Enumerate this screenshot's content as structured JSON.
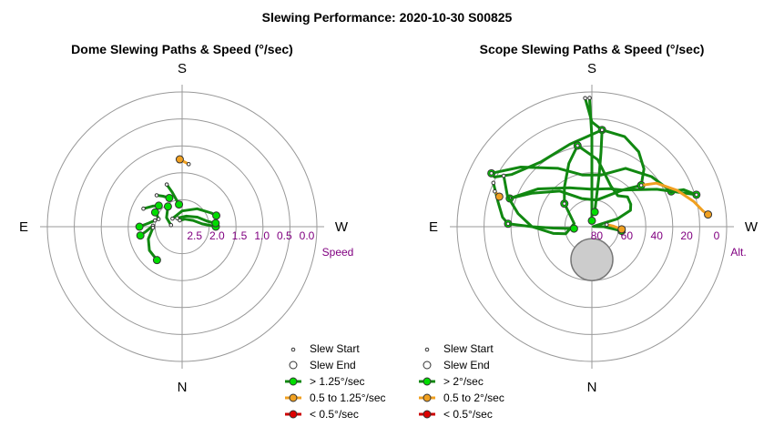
{
  "figure_title": "Slewing Performance: 2020-10-30 S00825",
  "colors": {
    "green_fill": "#00dd00",
    "green_line": "#118811",
    "orange_fill": "#f0a020",
    "orange_line": "#f0a020",
    "red_fill": "#dd0000",
    "red_line": "#cc0000",
    "grid": "#999999",
    "tick_text": "#800080",
    "moon_fill": "#cccccc",
    "moon_edge": "#777777"
  },
  "chart_data": [
    {
      "type": "scatter",
      "title": "Dome Slewing Paths & Speed (°/sec)",
      "projection": "polar",
      "compass": {
        "top": "S",
        "bottom": "N",
        "left": "E",
        "right": "W"
      },
      "radial_axis": {
        "quantity": "speed",
        "unit": "°/sec",
        "label": "Speed",
        "ticks": [
          "2.5",
          "2.0",
          "1.5",
          "1.0",
          "0.5",
          "0.0"
        ],
        "tick_values": [
          2.5,
          2.0,
          1.5,
          1.0,
          0.5,
          0.0
        ],
        "center_value": 3.0,
        "edge_value": 0.0
      },
      "legend": {
        "placement": "bottom-right",
        "entries": [
          {
            "label": "Slew Start",
            "marker": "small-circle"
          },
          {
            "label": "Slew End",
            "marker": "open-circle"
          },
          {
            "label": "> 1.25°/sec",
            "color": "green"
          },
          {
            "label": "0.5 to 1.25°/sec",
            "color": "orange"
          },
          {
            "label": "< 0.5°/sec",
            "color": "red"
          }
        ]
      },
      "slews": [
        {
          "speed": "fast",
          "points": [
            [
              160,
              2.0
            ],
            [
              164,
              2.2
            ],
            [
              172,
              2.5
            ]
          ]
        },
        {
          "speed": "fast",
          "points": [
            [
              108,
              2.45
            ],
            [
              113,
              2.4
            ],
            [
              118,
              2.32
            ]
          ]
        },
        {
          "speed": "fast",
          "points": [
            [
              115,
              2.05
            ],
            [
              125,
              2.2
            ],
            [
              132,
              2.3
            ]
          ]
        },
        {
          "speed": "fast",
          "points": [
            [
              141,
              2.1
            ],
            [
              148,
              2.2
            ],
            [
              156,
              2.3
            ]
          ]
        },
        {
          "speed": "fast",
          "points": [
            [
              103,
              2.38
            ],
            [
              96,
              2.25
            ],
            [
              90,
              2.05
            ]
          ]
        },
        {
          "speed": "fast",
          "points": [
            [
              92,
              2.35
            ],
            [
              83,
              2.2
            ],
            [
              78,
              2.05
            ]
          ]
        },
        {
          "speed": "fast",
          "points": [
            [
              88,
              2.35
            ],
            [
              70,
              2.2
            ],
            [
              54,
              2.1
            ],
            [
              37,
              2.07
            ]
          ]
        },
        {
          "speed": "fast",
          "points": [
            [
              160,
              2.85
            ],
            [
              200,
              2.82
            ],
            [
              240,
              2.72
            ],
            [
              262,
              2.55
            ],
            [
              268,
              2.35
            ],
            [
              270,
              2.25
            ]
          ]
        },
        {
          "speed": "fast",
          "points": [
            [
              150,
              2.78
            ],
            [
              200,
              2.75
            ],
            [
              238,
              2.6
            ],
            [
              258,
              2.42
            ],
            [
              263,
              2.3
            ],
            [
              264,
              2.25
            ]
          ]
        },
        {
          "speed": "fast",
          "points": [
            [
              130,
              2.72
            ],
            [
              180,
              2.65
            ],
            [
              220,
              2.48
            ],
            [
              245,
              2.28
            ],
            [
              252,
              2.2
            ]
          ]
        },
        {
          "speed": "fast",
          "points": [
            [
              98,
              2.75
            ],
            [
              120,
              2.6
            ],
            [
              145,
              2.45
            ]
          ]
        },
        {
          "speed": "medium",
          "points": [
            [
              186,
              1.6
            ],
            [
              178,
              1.5
            ]
          ]
        }
      ]
    },
    {
      "type": "scatter",
      "title": "Scope Slewing Paths & Speed (°/sec)",
      "projection": "polar",
      "compass": {
        "top": "S",
        "bottom": "N",
        "left": "E",
        "right": "W"
      },
      "radial_axis": {
        "quantity": "altitude",
        "label": "Alt.",
        "ticks": [
          "80",
          "60",
          "40",
          "20",
          "0"
        ],
        "tick_values": [
          80,
          60,
          40,
          20,
          0
        ],
        "center_value": 90,
        "edge_value": 0
      },
      "moon": {
        "altitude": 68,
        "azimuth": 0,
        "radius_deg": 14
      },
      "legend": {
        "placement": "bottom-left",
        "entries": [
          {
            "label": "Slew Start",
            "marker": "small-circle"
          },
          {
            "label": "Slew End",
            "marker": "open-circle"
          },
          {
            "label": "> 2°/sec",
            "color": "green"
          },
          {
            "label": "0.5 to 2°/sec",
            "color": "orange"
          },
          {
            "label": "< 0.5°/sec",
            "color": "red"
          }
        ]
      },
      "slews": [
        {
          "speed": "fast",
          "points": [
            [
              179,
              4
            ],
            [
              179,
              6
            ],
            [
              180,
              30
            ],
            [
              180,
              60
            ],
            [
              180,
              86
            ]
          ]
        },
        {
          "speed": "fast",
          "points": [
            [
              177,
              4
            ],
            [
              180,
              20
            ],
            [
              186,
              25
            ]
          ]
        },
        {
          "speed": "fast",
          "points": [
            [
              186,
              25
            ],
            [
              187,
              40
            ],
            [
              188,
              55
            ],
            [
              191,
              80
            ]
          ]
        },
        {
          "speed": "fast",
          "points": [
            [
              186,
              25
            ],
            [
              200,
              26
            ],
            [
              212,
              31
            ],
            [
              222,
              38
            ],
            [
              230,
              47
            ]
          ]
        },
        {
          "speed": "fast",
          "points": [
            [
              186,
              25
            ],
            [
              165,
              33
            ],
            [
              142,
              35
            ],
            [
              123,
              26
            ],
            [
              117,
              17
            ],
            [
              118,
              14
            ]
          ]
        },
        {
          "speed": "fast",
          "points": [
            [
              118,
              14
            ],
            [
              130,
              28
            ],
            [
              150,
              45
            ],
            [
              170,
              55
            ],
            [
              190,
              55
            ],
            [
              210,
              45
            ],
            [
              230,
              38
            ],
            [
              246,
              32
            ]
          ]
        },
        {
          "speed": "fast",
          "points": [
            [
              246,
              32
            ],
            [
              248,
              24
            ],
            [
              253,
              17
            ]
          ]
        },
        {
          "speed": "fast",
          "points": [
            [
              253,
              17
            ],
            [
              240,
              40
            ],
            [
              220,
              58
            ],
            [
              190,
              72
            ],
            [
              160,
              70
            ],
            [
              138,
              58
            ],
            [
              119,
              44
            ],
            [
              109,
              32
            ]
          ]
        },
        {
          "speed": "fast",
          "points": [
            [
              109,
              32
            ],
            [
              125,
              46
            ],
            [
              150,
              60
            ],
            [
              180,
              65
            ],
            [
              205,
              62
            ],
            [
              220,
              58
            ],
            [
              230,
              47
            ]
          ]
        },
        {
          "speed": "fast",
          "points": [
            [
              120,
              22
            ],
            [
              110,
              30
            ],
            [
              100,
              40
            ],
            [
              90,
              50
            ],
            [
              80,
              64
            ],
            [
              75,
              72
            ],
            [
              100,
              78
            ],
            [
              125,
              70
            ],
            [
              130,
              66
            ]
          ]
        },
        {
          "speed": "fast",
          "points": [
            [
              130,
              66
            ],
            [
              145,
              58
            ],
            [
              160,
              45
            ],
            [
              170,
              35
            ]
          ]
        },
        {
          "speed": "fast",
          "points": [
            [
              170,
              35
            ],
            [
              185,
              45
            ],
            [
              205,
              60
            ],
            [
              220,
              63
            ],
            [
              230,
              59
            ],
            [
              240,
              60
            ],
            [
              247,
              62
            ],
            [
              253,
              72
            ],
            [
              255,
              87
            ],
            [
              262,
              89
            ],
            [
              270,
              82
            ],
            [
              278,
              70
            ]
          ]
        },
        {
          "speed": "fast",
          "points": [
            [
              114,
              18
            ],
            [
              105,
              25
            ],
            [
              96,
              30
            ],
            [
              92,
              34
            ]
          ]
        },
        {
          "speed": "fast",
          "points": [
            [
              92,
              34
            ],
            [
              90,
              50
            ],
            [
              88,
              64
            ],
            [
              84,
              78
            ]
          ]
        },
        {
          "speed": "medium",
          "points": [
            [
              230,
              47
            ],
            [
              236,
              38
            ],
            [
              247,
              28
            ],
            [
              256,
              20
            ],
            [
              262,
              15
            ],
            [
              264,
              12
            ]
          ]
        },
        {
          "speed": "medium",
          "points": [
            [
              262,
              80
            ],
            [
              268,
              76
            ],
            [
              275,
              70
            ]
          ]
        },
        {
          "speed": "medium",
          "points": [
            [
              110,
              21
            ],
            [
              108,
              25
            ]
          ]
        }
      ]
    }
  ]
}
